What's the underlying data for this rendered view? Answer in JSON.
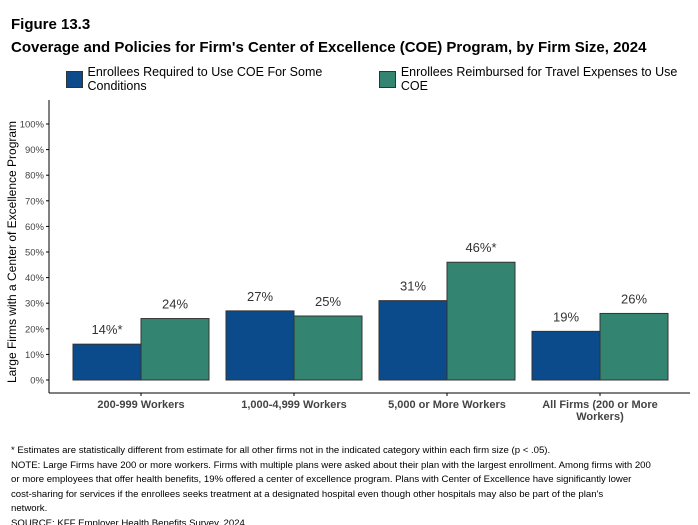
{
  "figure_label": "Figure 13.3",
  "chart_data": {
    "type": "bar",
    "title": "Coverage and Policies for Firm's Center of Excellence (COE) Program, by Firm Size, 2024",
    "ylabel": "Large Firms with a Center of Excellence Program",
    "xlabel": "",
    "ylim": [
      0,
      100
    ],
    "yticks": [
      "0%",
      "10%",
      "20%",
      "30%",
      "40%",
      "50%",
      "60%",
      "70%",
      "80%",
      "90%",
      "100%"
    ],
    "categories": [
      [
        "200-999 Workers"
      ],
      [
        "1,000-4,999 Workers"
      ],
      [
        "5,000 or More Workers"
      ],
      [
        "All Firms (200 or More",
        "Workers)"
      ]
    ],
    "series": [
      {
        "name": "Enrollees Required to Use COE For Some Conditions",
        "color": "#0b4a8b",
        "values": [
          14,
          27,
          31,
          19
        ],
        "labels": [
          "14%*",
          "27%",
          "31%",
          "19%"
        ]
      },
      {
        "name": "Enrollees Reimbursed for Travel Expenses to Use COE",
        "color": "#338572",
        "values": [
          24,
          25,
          46,
          26
        ],
        "labels": [
          "24%",
          "25%",
          "46%*",
          "26%"
        ]
      }
    ],
    "legend_position": "top",
    "grid": false
  },
  "notes": [
    "* Estimates are statistically different from estimate for all other firms not in the indicated category within each firm size (p < .05).",
    "NOTE: Large Firms have 200 or more workers.  Firms with multiple plans were asked about their plan with the largest enrollment.  Among firms with 200",
    "or more employees that offer health benefits, 19% offered a center of excellence program. Plans with Center of Excellence have significantly lower",
    "cost-sharing for services if the enrollees seeks treatment at a designated hospital even though other hospitals may also be part of the plan's",
    "network.",
    "SOURCE: KFF Employer Health Benefits Survey, 2024"
  ]
}
